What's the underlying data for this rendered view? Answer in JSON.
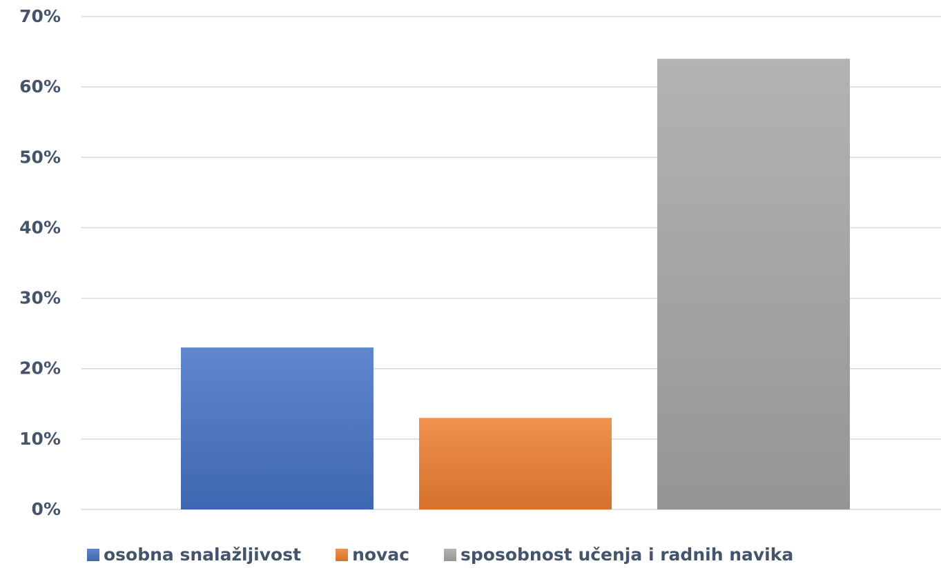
{
  "chart_data": {
    "type": "bar",
    "categories": [
      null
    ],
    "series": [
      {
        "name": "osobna snalažljivost",
        "color": "#4472c4",
        "values": [
          23
        ]
      },
      {
        "name": "novac",
        "color": "#ed7d31",
        "values": [
          13
        ]
      },
      {
        "name": "sposobnost učenja i radnih navika",
        "color": "#a5a5a5",
        "values": [
          64
        ]
      }
    ],
    "ylim": [
      0,
      70
    ],
    "yticks": [
      {
        "value": 0,
        "label": "0%"
      },
      {
        "value": 10,
        "label": "10%"
      },
      {
        "value": 20,
        "label": "20%"
      },
      {
        "value": 30,
        "label": "30%"
      },
      {
        "value": 40,
        "label": "40%"
      },
      {
        "value": 50,
        "label": "50%"
      },
      {
        "value": 60,
        "label": "60%"
      },
      {
        "value": 70,
        "label": "70%"
      }
    ],
    "grid": true,
    "legend": "bottom"
  }
}
